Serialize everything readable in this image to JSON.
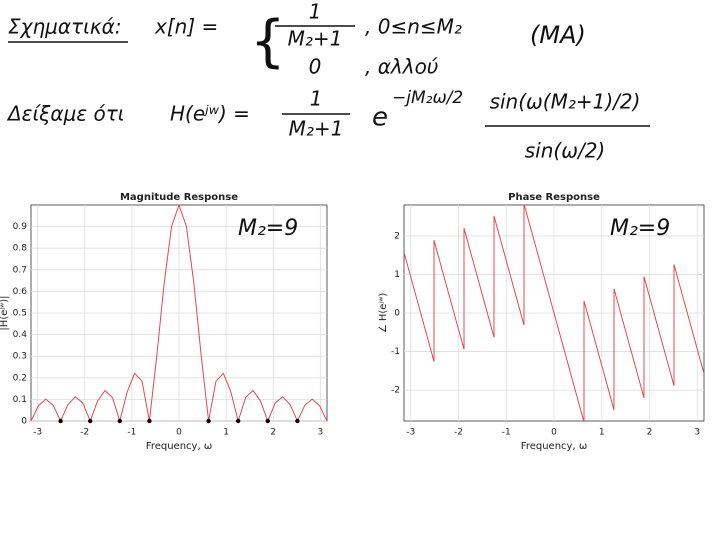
{
  "definition": {
    "label": "Σχηματικά:",
    "lhs": "x[n] =",
    "case1_numerator": "1",
    "case1_denominator": "M₂+1",
    "case1_condition": ", 0≤n≤M₂",
    "case2_value": "0",
    "case2_condition": ", αλλού",
    "tag": "(MA)"
  },
  "result": {
    "label": "Δείξαμε ότι",
    "lhs": "H(eʲʷ) =",
    "numerator": "1",
    "denominator": "M₂+1",
    "base": "e",
    "exponent": "−jM₂ω/2",
    "ratio_numerator": "sin(ω(M₂+1)/2)",
    "ratio_denominator": "sin(ω/2)"
  },
  "chart_data": [
    {
      "type": "line",
      "title": "Magnitude Response",
      "xlabel": "Frequency, ω",
      "ylabel": "|H(eʲʷ)|",
      "annotation": "M₂=9",
      "x": [
        -3.1416,
        -2.9845,
        -2.8274,
        -2.6704,
        -2.5133,
        -2.3562,
        -2.1991,
        -2.042,
        -1.885,
        -1.7279,
        -1.5708,
        -1.4137,
        -1.2566,
        -1.0996,
        -0.9425,
        -0.7854,
        -0.6283,
        -0.4712,
        -0.3142,
        -0.1571,
        0,
        0.1571,
        0.3142,
        0.4712,
        0.6283,
        0.7854,
        0.9425,
        1.0996,
        1.2566,
        1.4137,
        1.5708,
        1.7279,
        1.885,
        2.042,
        2.1991,
        2.3562,
        2.5133,
        2.6704,
        2.8274,
        2.9845,
        3.1416
      ],
      "series": [
        {
          "color": "#e5484d",
          "values": [
            0,
            0.0709,
            0.1012,
            0.0727,
            0,
            0.0765,
            0.1122,
            0.0829,
            0,
            0.093,
            0.1414,
            0.1089,
            0,
            0.1353,
            0.2203,
            0.1848,
            0,
            0.3029,
            0.6393,
            0.9012,
            1,
            0.9012,
            0.6393,
            0.3029,
            0,
            0.1848,
            0.2203,
            0.1353,
            0,
            0.1089,
            0.1414,
            0.093,
            0,
            0.0829,
            0.1122,
            0.0765,
            0,
            0.0727,
            0.1012,
            0.0709,
            0
          ]
        }
      ],
      "markers": {
        "color": "#000000",
        "x": [
          -2.5133,
          -1.885,
          -1.2566,
          -0.6283,
          0.6283,
          1.2566,
          1.885,
          2.5133
        ],
        "values": [
          0,
          0,
          0,
          0,
          0,
          0,
          0,
          0
        ]
      },
      "xlim": [
        -3.1416,
        3.1416
      ],
      "ylim": [
        0,
        1
      ],
      "xticks": [
        -3,
        -2,
        -1,
        0,
        1,
        2,
        3
      ],
      "yticks": [
        0,
        0.1,
        0.2,
        0.3,
        0.4,
        0.5,
        0.6,
        0.7,
        0.8,
        0.9
      ],
      "grid": true
    },
    {
      "type": "line",
      "title": "Phase Response",
      "xlabel": "Frequency, ω",
      "ylabel": "∠ H(eʲʷ)",
      "annotation": "M₂=9",
      "x": [
        -3.1416,
        -2.5133,
        -2.5133,
        -1.885,
        -1.885,
        -1.2566,
        -1.2566,
        -0.6283,
        -0.6283,
        0.6283,
        0.6283,
        1.2566,
        1.2566,
        1.885,
        1.885,
        2.5133,
        2.5133,
        3.1416
      ],
      "series": [
        {
          "color": "#e5484d",
          "values": [
            1.571,
            -1.257,
            1.885,
            -0.942,
            2.199,
            -0.628,
            2.513,
            -0.314,
            2.827,
            -2.827,
            0.314,
            -2.513,
            0.628,
            -2.199,
            0.942,
            -1.885,
            1.257,
            -1.571
          ]
        }
      ],
      "xlim": [
        -3.1416,
        3.1416
      ],
      "ylim": [
        -2.8,
        2.8
      ],
      "xticks": [
        -3,
        -2,
        -1,
        0,
        1,
        2,
        3
      ],
      "yticks": [
        -2,
        -1,
        0,
        1,
        2
      ],
      "grid": true
    }
  ]
}
